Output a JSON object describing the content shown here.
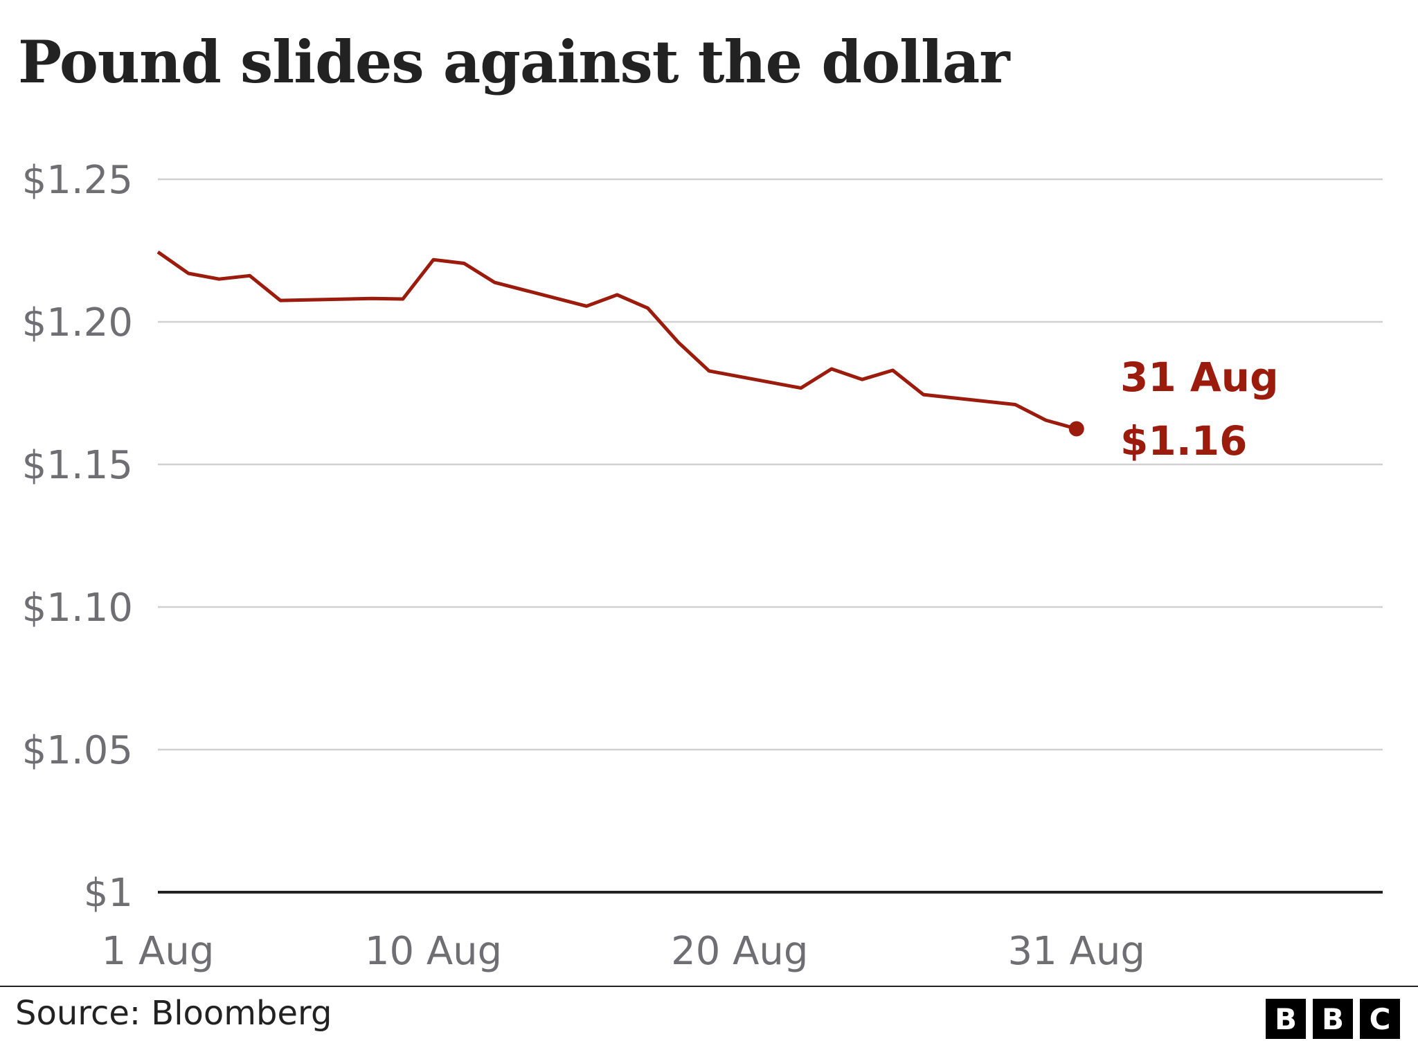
{
  "title": "Pound slides against the dollar",
  "source": "Source: Bloomberg",
  "logo": [
    "B",
    "B",
    "C"
  ],
  "colors": {
    "line": "#9b1b0d",
    "grid": "#d0d0d0",
    "axis": "#222222",
    "tick": "#6e6e73"
  },
  "chart_data": {
    "type": "line",
    "title": "Pound slides against the dollar",
    "ylim": [
      1.0,
      1.25
    ],
    "yticks": [
      {
        "value": 1.25,
        "label": "$1.25"
      },
      {
        "value": 1.2,
        "label": "$1.20"
      },
      {
        "value": 1.15,
        "label": "$1.15"
      },
      {
        "value": 1.1,
        "label": "$1.10"
      },
      {
        "value": 1.05,
        "label": "$1.05"
      },
      {
        "value": 1.0,
        "label": "$1"
      }
    ],
    "xticks": [
      {
        "value": 1,
        "label": "1 Aug"
      },
      {
        "value": 10,
        "label": "10 Aug"
      },
      {
        "value": 20,
        "label": "20 Aug"
      },
      {
        "value": 31,
        "label": "31 Aug"
      }
    ],
    "xlim": [
      1,
      41
    ],
    "grid": true,
    "series": [
      {
        "x": [
          1,
          2,
          3,
          4,
          5,
          8,
          9,
          10,
          11,
          12,
          15,
          16,
          17,
          18,
          19,
          22,
          23,
          24,
          25,
          26,
          29,
          30,
          31
        ],
        "values": [
          1.2245,
          1.217,
          1.215,
          1.2162,
          1.2075,
          1.2082,
          1.208,
          1.2218,
          1.2205,
          1.2138,
          1.2055,
          1.2095,
          1.2048,
          1.1928,
          1.1828,
          1.1768,
          1.1835,
          1.1798,
          1.183,
          1.1745,
          1.171,
          1.1655,
          1.1625
        ]
      }
    ],
    "annotation": {
      "date": "31 Aug",
      "value": "$1.16",
      "x": 31,
      "y": 1.1625
    }
  }
}
